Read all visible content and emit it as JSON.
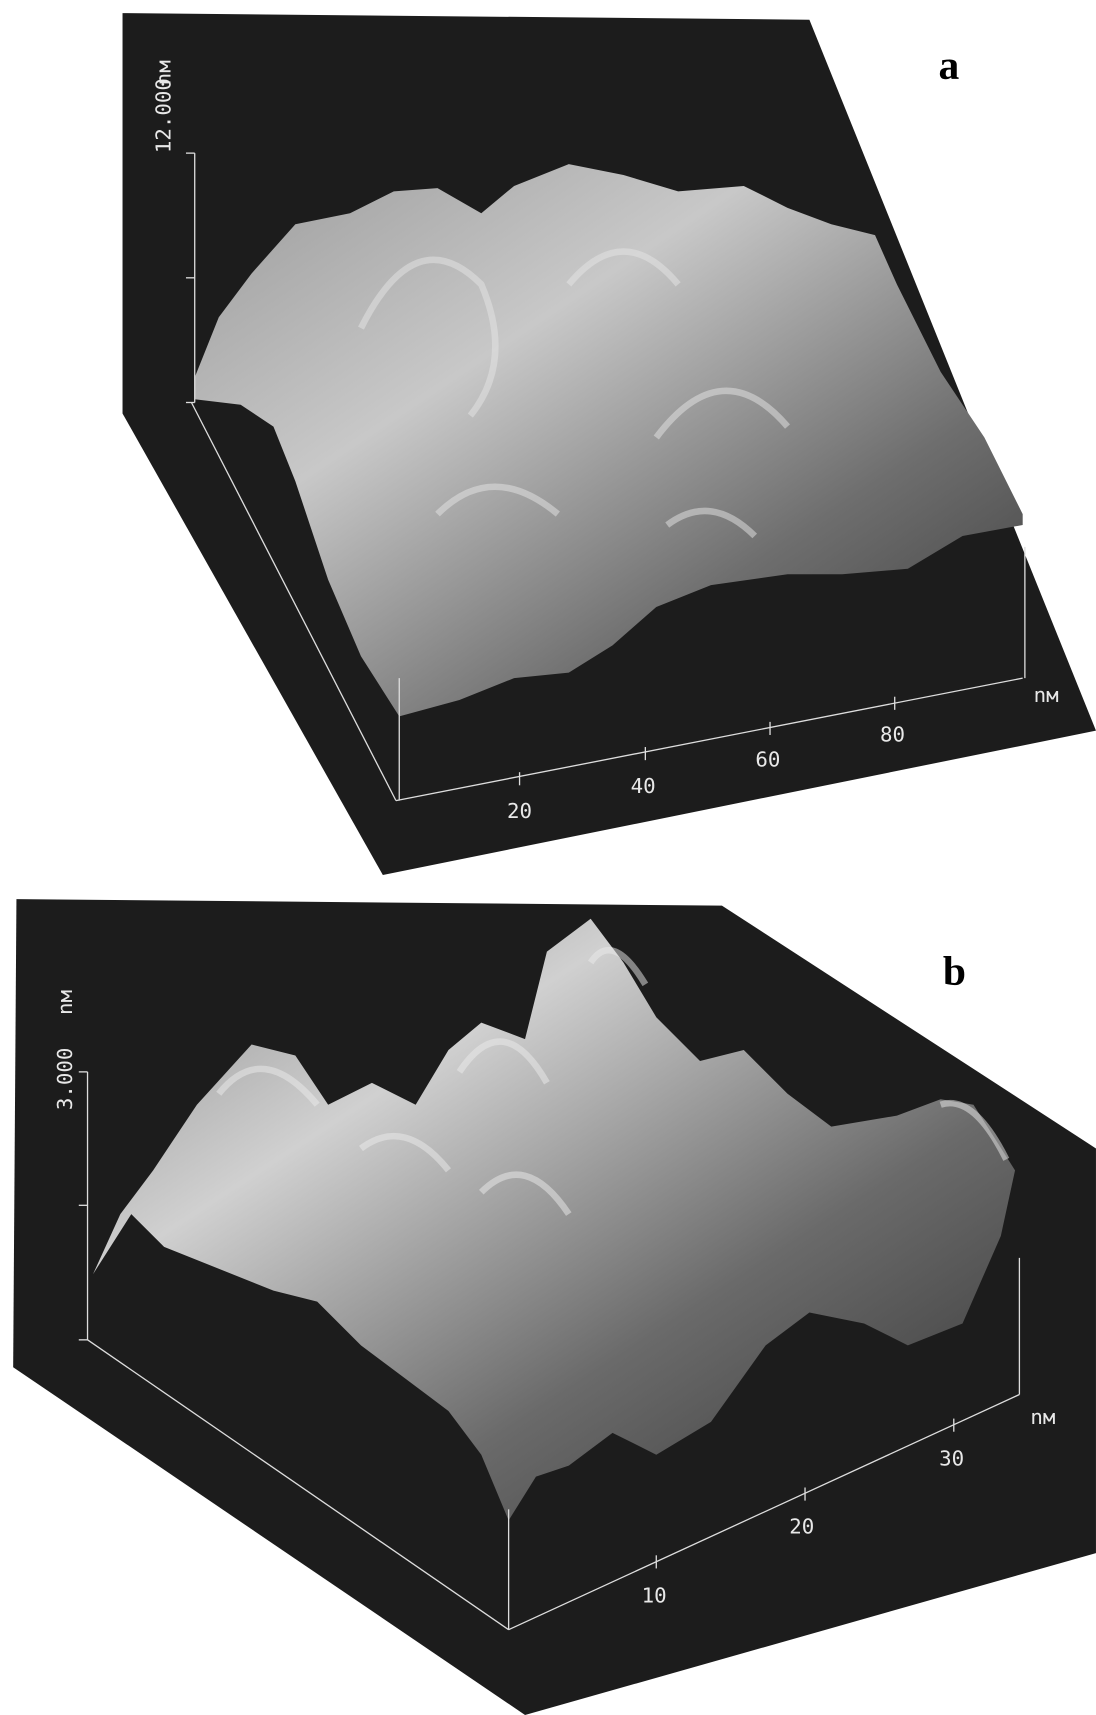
{
  "panels": [
    {
      "label": "a",
      "z_unit": "nм",
      "z_tick": "12.000",
      "x_ticks": [
        "20",
        "40",
        "60",
        "80"
      ],
      "x_unit": "nм"
    },
    {
      "label": "b",
      "z_unit": "nм",
      "z_tick": "3.000",
      "x_ticks": [
        "10",
        "20",
        "30"
      ],
      "x_unit": "nм"
    }
  ]
}
